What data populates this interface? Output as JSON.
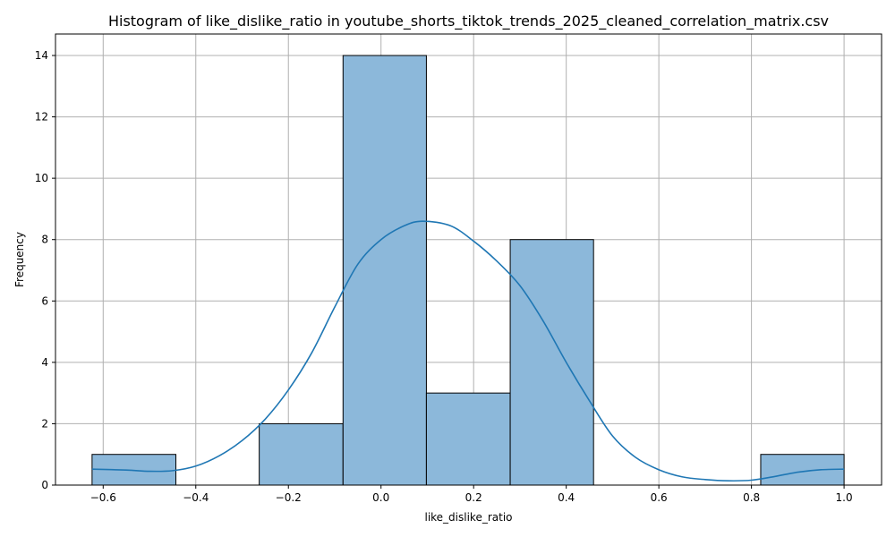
{
  "chart_data": {
    "type": "bar",
    "title": "Histogram of like_dislike_ratio in youtube_shorts_tiktok_trends_2025_cleaned_correlation_matrix.csv",
    "xlabel": "like_dislike_ratio",
    "ylabel": "Frequency",
    "xlim": [
      -0.703,
      1.081
    ],
    "ylim": [
      0,
      14.7
    ],
    "grid": true,
    "legend": "none",
    "x_ticks": [
      -0.6,
      -0.4,
      -0.2,
      0.0,
      0.2,
      0.4,
      0.6,
      0.8,
      1.0
    ],
    "x_tick_labels": [
      "−0.6",
      "−0.4",
      "−0.2",
      "0.0",
      "0.2",
      "0.4",
      "0.6",
      "0.8",
      "1.0"
    ],
    "y_ticks": [
      0,
      2,
      4,
      6,
      8,
      10,
      12,
      14
    ],
    "y_tick_labels": [
      "0",
      "2",
      "4",
      "6",
      "8",
      "10",
      "12",
      "14"
    ],
    "bin_edges": [
      -0.624,
      -0.443,
      -0.263,
      -0.082,
      0.098,
      0.279,
      0.459,
      0.639,
      0.82,
      1.0
    ],
    "counts": [
      1,
      0,
      2,
      14,
      3,
      8,
      0,
      0,
      1
    ],
    "kde": {
      "x": [
        -0.624,
        -0.55,
        -0.5,
        -0.45,
        -0.4,
        -0.35,
        -0.3,
        -0.25,
        -0.2,
        -0.15,
        -0.1,
        -0.05,
        0.0,
        0.05,
        0.09,
        0.15,
        0.2,
        0.25,
        0.3,
        0.35,
        0.4,
        0.45,
        0.5,
        0.55,
        0.6,
        0.65,
        0.7,
        0.75,
        0.8,
        0.85,
        0.9,
        0.95,
        1.0
      ],
      "y": [
        0.52,
        0.49,
        0.45,
        0.47,
        0.62,
        0.95,
        1.45,
        2.15,
        3.1,
        4.3,
        5.8,
        7.2,
        8.0,
        8.45,
        8.6,
        8.45,
        7.95,
        7.3,
        6.5,
        5.35,
        4.0,
        2.75,
        1.6,
        0.9,
        0.5,
        0.27,
        0.18,
        0.14,
        0.16,
        0.28,
        0.42,
        0.5,
        0.52
      ]
    },
    "colors": {
      "bar_fill": "#8cb8da",
      "bar_edge": "#000000",
      "kde_line": "#1f77b4",
      "grid": "#b0b0b0"
    }
  }
}
